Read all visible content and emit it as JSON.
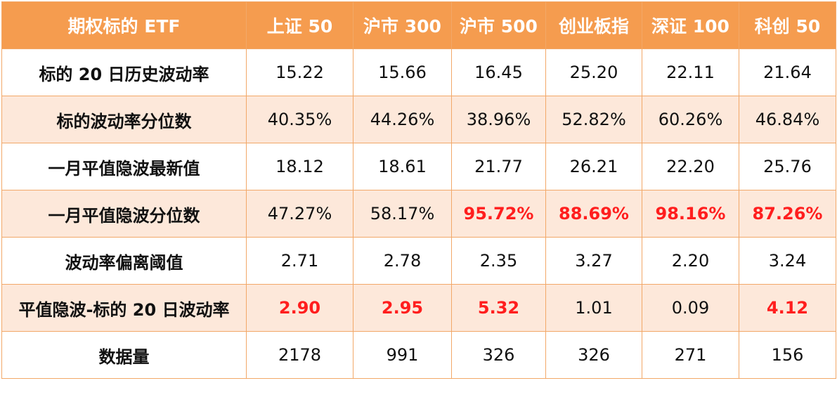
{
  "table": {
    "headers": [
      "期权标的 ETF",
      "上证 50",
      "沪市 300",
      "沪市 500",
      "创业板指",
      "深证 100",
      "科创 50"
    ],
    "rows": [
      {
        "label": "标的 20 日历史波动率",
        "cells": [
          "15.22",
          "15.66",
          "16.45",
          "25.20",
          "22.11",
          "21.64"
        ]
      },
      {
        "label": "标的波动率分位数",
        "cells": [
          "40.35%",
          "44.26%",
          "38.96%",
          "52.82%",
          "60.26%",
          "46.84%"
        ]
      },
      {
        "label": "一月平值隐波最新值",
        "cells": [
          "18.12",
          "18.61",
          "21.77",
          "26.21",
          "22.20",
          "25.76"
        ]
      },
      {
        "label": "一月平值隐波分位数",
        "cells": [
          "47.27%",
          "58.17%",
          "95.72%",
          "88.69%",
          "98.16%",
          "87.26%"
        ]
      },
      {
        "label": "波动率偏离阈值",
        "cells": [
          "2.71",
          "2.78",
          "2.35",
          "3.27",
          "2.20",
          "3.24"
        ]
      },
      {
        "label": "平值隐波-标的 20 日波动率",
        "cells": [
          "2.90",
          "2.95",
          "5.32",
          "1.01",
          "0.09",
          "4.12"
        ]
      },
      {
        "label": "数据量",
        "cells": [
          "2178",
          "991",
          "326",
          "326",
          "271",
          "156"
        ]
      }
    ]
  },
  "colors": {
    "header_bg": "#f59c4f",
    "header_text": "#ffffff",
    "shaded_row_bg": "#fde8da",
    "highlight_text": "#ff1e1e",
    "border": "#f2a868"
  }
}
